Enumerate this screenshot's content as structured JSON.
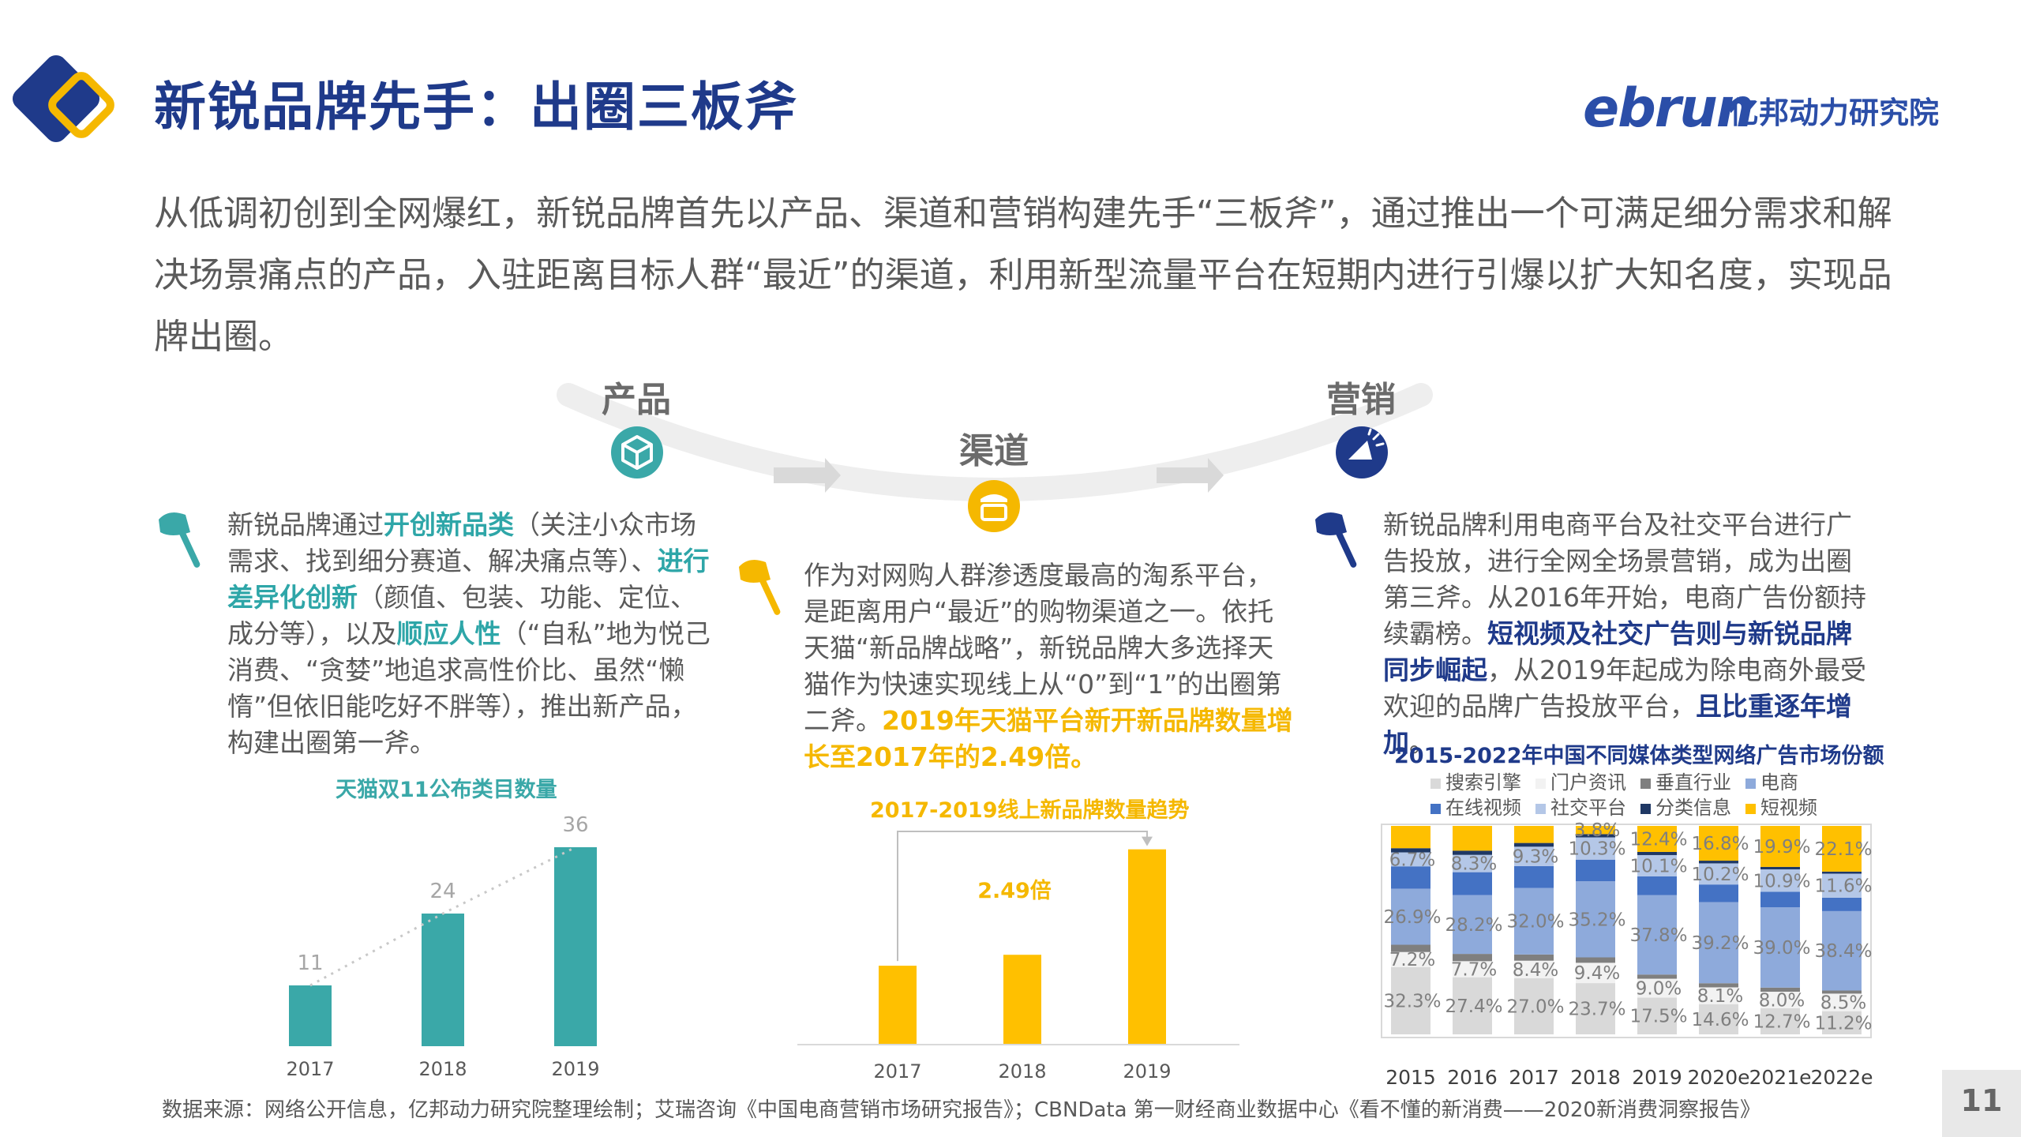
{
  "header": {
    "title": "新锐品牌先手：出圈三板斧",
    "logo_text": "ebrun",
    "logo_cn": "亿邦动力研究院"
  },
  "intro": "从低调初创到全网爆红，新锐品牌首先以产品、渠道和营销构建先手“三板斧”，通过推出一个可满足细分需求和解决场景痛点的产品，入驻距离目标人群“最近”的渠道，利用新型流量平台在短期内进行引爆以扩大知名度，实现品牌出圈。",
  "stages": {
    "product": "产品",
    "channel": "渠道",
    "marketing": "营销"
  },
  "product_text": [
    {
      "t": "新锐品牌通过",
      "hl": false
    },
    {
      "t": "开创新品类",
      "hl": true
    },
    {
      "t": "（关注小众市场需求、找到细分赛道、解决痛点等）、",
      "hl": false
    },
    {
      "t": "进行差异化创新",
      "hl": true
    },
    {
      "t": "（颜值、包装、功能、定位、成分等），以及",
      "hl": false
    },
    {
      "t": "顺应人性",
      "hl": true
    },
    {
      "t": "（“自私”地为悦己消费、“贪婪”地追求高性价比、虽然“懒惰”但依旧能吃好不胖等），推出新产品，构建出圈第一斧。",
      "hl": false
    }
  ],
  "channel_text": [
    {
      "t": "作为对网购人群渗透度最高的淘系平台，是距离用户“最近”的购物渠道之一。依托天猫“新品牌战略”，新锐品牌大多选择天猫作为快速实现线上从“0”到“1”的出圈第二斧。",
      "hl": false
    },
    {
      "t": "2019年天猫平台新开新品牌数量增长至2017年的2.49倍。",
      "hl": true
    }
  ],
  "marketing_text": [
    {
      "t": "新锐品牌利用电商平台及社交平台进行广告投放，进行全网全场景营销，成为出圈第三斧。从2016年开始，电商广告份额持续霸榜。",
      "hl": false
    },
    {
      "t": "短视频及社交广告则与新锐品牌同步崛起",
      "hl": true
    },
    {
      "t": "，从2019年起成为除电商外最受欢迎的品牌广告投放平台，",
      "hl": false
    },
    {
      "t": "且比重逐年增加",
      "hl": true
    },
    {
      "t": "。",
      "hl": false
    }
  ],
  "source": "数据来源：网络公开信息，亿邦动力研究院整理绘制；艾瑞咨询《中国电商营销市场研究报告》；CBNData 第一财经商业数据中心《看不懂的新消费——2020新消费洞察报告》",
  "page_number": "11",
  "colors": {
    "navy": "#1f3a8a",
    "teal": "#3aa8a8",
    "gold": "#f5b800"
  },
  "chart_data": [
    {
      "type": "bar",
      "title": "天猫双11公布类目数量",
      "categories": [
        "2017",
        "2018",
        "2019"
      ],
      "values": [
        11,
        24,
        36
      ],
      "ylim": [
        0,
        40
      ],
      "color": "#3aa8a8"
    },
    {
      "type": "bar",
      "title": "2017-2019线上新品牌数量趋势",
      "categories": [
        "2017",
        "2018",
        "2019"
      ],
      "values": [
        1,
        1.14,
        2.49
      ],
      "ylim": [
        0,
        2.8
      ],
      "annotation": "2.49倍",
      "color": "#ffc000"
    },
    {
      "type": "bar",
      "stacked": true,
      "title": "2015-2022年中国不同媒体类型网络广告市场份额",
      "categories": [
        "2015",
        "2016",
        "2017",
        "2018",
        "2019",
        "2020e",
        "2021e",
        "2022e"
      ],
      "legend": "top",
      "series": [
        {
          "name": "搜索引擎",
          "color": "#d9d9d9",
          "values": [
            32.3,
            27.4,
            27.0,
            23.7,
            17.5,
            14.6,
            12.7,
            11.2
          ],
          "labels": [
            "32.3%",
            "27.4%",
            "27.0%",
            "23.7%",
            "17.5%",
            "14.6%",
            "12.7%",
            "11.2%"
          ]
        },
        {
          "name": "门户资讯",
          "color": "#f2f2f2",
          "values": [
            7.2,
            7.7,
            8.4,
            9.4,
            9.0,
            8.1,
            8.0,
            8.5
          ],
          "labels": [
            "7.2%",
            "7.7%",
            "8.4%",
            "9.4%",
            "9.0%",
            "8.1%",
            "8.0%",
            "8.5%"
          ]
        },
        {
          "name": "垂直行业",
          "color": "#7f7f7f",
          "values": [
            3.5,
            3.5,
            3.0,
            2.5,
            2.0,
            2.0,
            2.0,
            1.5
          ]
        },
        {
          "name": "电商",
          "color": "#8eaadb",
          "values": [
            26.9,
            28.2,
            32.0,
            35.2,
            37.8,
            39.2,
            39.0,
            38.4
          ],
          "labels": [
            "26.9%",
            "28.2%",
            "32.0%",
            "35.2%",
            "37.8%",
            "39.2%",
            "39.0%",
            "38.4%"
          ]
        },
        {
          "name": "在线视频",
          "color": "#4472c4",
          "values": [
            10.7,
            11.0,
            10.5,
            10.0,
            9.0,
            8.5,
            7.5,
            6.5
          ]
        },
        {
          "name": "社交平台",
          "color": "#b4c7e7",
          "values": [
            6.7,
            8.3,
            9.3,
            10.3,
            10.1,
            10.2,
            10.9,
            11.6
          ],
          "labels": [
            "6.7%",
            "8.3%",
            "9.3%",
            "10.3%",
            "10.1%",
            "10.2%",
            "10.9%",
            "11.6%"
          ]
        },
        {
          "name": "分类信息",
          "color": "#1f3864",
          "values": [
            2.0,
            2.0,
            1.8,
            1.5,
            1.5,
            1.3,
            1.2,
            1.0
          ]
        },
        {
          "name": "短视频",
          "color": "#ffc000",
          "values": [
            10.7,
            11.9,
            8.2,
            3.8,
            12.4,
            16.8,
            19.9,
            22.1
          ],
          "labels": [
            "",
            "",
            "",
            "3.8%",
            "12.4%",
            "16.8%",
            "19.9%",
            "22.1%"
          ]
        }
      ]
    }
  ]
}
